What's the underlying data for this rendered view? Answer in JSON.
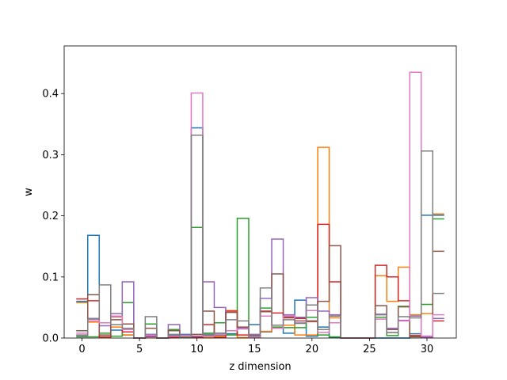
{
  "chart_data": {
    "type": "step",
    "title": "",
    "xlabel": "z dimension",
    "ylabel": "w",
    "xlim": [
      -1.55,
      32.55
    ],
    "ylim": [
      0,
      0.478
    ],
    "x_ticks": [
      0,
      5,
      10,
      15,
      20,
      25,
      30
    ],
    "y_ticks": [
      0.0,
      0.1,
      0.2,
      0.3,
      0.4
    ],
    "y_tick_labels": [
      "0.0",
      "0.1",
      "0.2",
      "0.3",
      "0.4"
    ],
    "grid": false,
    "legend": "none",
    "series": [
      {
        "color": "#1f77b4",
        "values": [
          0.06,
          0.168,
          0.002,
          0.013,
          0.005,
          0.0,
          0.006,
          0.0,
          0.004,
          0.006,
          0.344,
          0.004,
          0.004,
          0.007,
          0.015,
          0.022,
          0.01,
          0.017,
          0.008,
          0.062,
          0.003,
          0.018,
          0.001,
          0.0,
          0.0,
          0.0,
          0.0,
          0.0,
          0.0,
          0.007,
          0.201,
          0.201
        ]
      },
      {
        "color": "#ff7f0e",
        "values": [
          0.058,
          0.026,
          0.001,
          0.018,
          0.005,
          0.0,
          0.003,
          0.0,
          0.002,
          0.002,
          0.003,
          0.001,
          0.003,
          0.045,
          0.001,
          0.001,
          0.011,
          0.017,
          0.021,
          0.005,
          0.005,
          0.312,
          0.033,
          0.0,
          0.0,
          0.0,
          0.102,
          0.06,
          0.116,
          0.038,
          0.04,
          0.203
        ]
      },
      {
        "color": "#2ca02c",
        "values": [
          0.002,
          0.002,
          0.008,
          0.003,
          0.058,
          0.0,
          0.023,
          0.0,
          0.014,
          0.002,
          0.181,
          0.008,
          0.025,
          0.005,
          0.196,
          0.004,
          0.049,
          0.018,
          0.017,
          0.017,
          0.034,
          0.005,
          0.002,
          0.0,
          0.0,
          0.0,
          0.034,
          0.004,
          0.052,
          0.003,
          0.055,
          0.195
        ]
      },
      {
        "color": "#d62728",
        "values": [
          0.064,
          0.061,
          0.002,
          0.035,
          0.01,
          0.0,
          0.002,
          0.0,
          0.001,
          0.002,
          0.001,
          0.022,
          0.001,
          0.044,
          0.005,
          0.001,
          0.044,
          0.041,
          0.033,
          0.032,
          0.027,
          0.186,
          0.092,
          0.0,
          0.0,
          0.0,
          0.119,
          0.1,
          0.061,
          0.004,
          0.001,
          0.028
        ]
      },
      {
        "color": "#9467bd",
        "values": [
          0.004,
          0.032,
          0.02,
          0.04,
          0.092,
          0.0,
          0.003,
          0.0,
          0.022,
          0.005,
          0.003,
          0.092,
          0.05,
          0.012,
          0.017,
          0.006,
          0.065,
          0.162,
          0.038,
          0.034,
          0.066,
          0.044,
          0.038,
          0.0,
          0.0,
          0.0,
          0.039,
          0.016,
          0.029,
          0.036,
          0.001,
          0.032
        ]
      },
      {
        "color": "#8c564b",
        "values": [
          0.012,
          0.071,
          0.005,
          0.03,
          0.023,
          0.0,
          0.016,
          0.0,
          0.012,
          0.001,
          0.006,
          0.044,
          0.008,
          0.042,
          0.018,
          0.004,
          0.043,
          0.105,
          0.034,
          0.028,
          0.028,
          0.06,
          0.151,
          0.0,
          0.0,
          0.0,
          0.053,
          0.014,
          0.051,
          0.002,
          0.003,
          0.142
        ]
      },
      {
        "color": "#e377c2",
        "values": [
          0.008,
          0.028,
          0.025,
          0.036,
          0.014,
          0.0,
          0.005,
          0.0,
          0.003,
          0.001,
          0.401,
          0.003,
          0.006,
          0.012,
          0.015,
          0.001,
          0.036,
          0.016,
          0.036,
          0.025,
          0.045,
          0.009,
          0.025,
          0.0,
          0.0,
          0.0,
          0.031,
          0.009,
          0.028,
          0.435,
          0.003,
          0.038
        ]
      },
      {
        "color": "#7f7f7f",
        "values": [
          0.005,
          0.031,
          0.087,
          0.022,
          0.016,
          0.0,
          0.035,
          0.0,
          0.006,
          0.001,
          0.332,
          0.006,
          0.008,
          0.03,
          0.028,
          0.003,
          0.082,
          0.021,
          0.03,
          0.024,
          0.054,
          0.014,
          0.036,
          0.0,
          0.0,
          0.0,
          0.038,
          0.009,
          0.035,
          0.033,
          0.306,
          0.073
        ]
      }
    ]
  }
}
